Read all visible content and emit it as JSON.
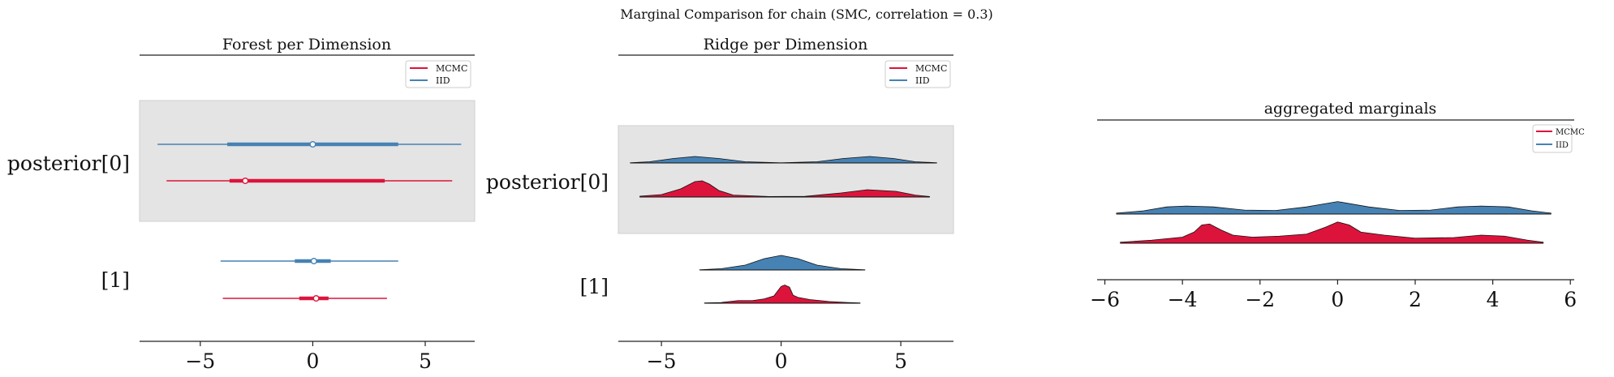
{
  "figure": {
    "suptitle": "Marginal Comparison for chain (SMC, correlation = 0.3)",
    "colors": {
      "MCMC": "#dc143c",
      "IID": "#4682b4",
      "band": "#e4e4e4",
      "axis": "#222222"
    }
  },
  "chart_data": [
    {
      "type": "forest",
      "title": "Forest per Dimension",
      "legend": [
        "MCMC",
        "IID"
      ],
      "legend_position": "top-right",
      "xlim": [
        -7.7,
        7.2
      ],
      "xticks": [
        -5,
        0,
        5
      ],
      "xtick_labels": [
        "−5",
        "0",
        "5"
      ],
      "rows": [
        {
          "label": "posterior[0]",
          "shaded": true,
          "series": [
            {
              "name": "IID",
              "hdi": [
                -6.9,
                6.6
              ],
              "iqr": [
                -3.8,
                3.8
              ],
              "center": 0.0
            },
            {
              "name": "MCMC",
              "hdi": [
                -6.5,
                6.2
              ],
              "iqr": [
                -3.7,
                3.2
              ],
              "center": -3.0
            }
          ]
        },
        {
          "label": "[1]",
          "shaded": false,
          "series": [
            {
              "name": "IID",
              "hdi": [
                -4.1,
                3.8
              ],
              "iqr": [
                -0.8,
                0.8
              ],
              "center": 0.05
            },
            {
              "name": "MCMC",
              "hdi": [
                -4.0,
                3.3
              ],
              "iqr": [
                -0.6,
                0.7
              ],
              "center": 0.15
            }
          ]
        }
      ]
    },
    {
      "type": "ridge",
      "title": "Ridge per Dimension",
      "legend": [
        "MCMC",
        "IID"
      ],
      "legend_position": "top-right",
      "xlim": [
        -6.8,
        7.2
      ],
      "xticks": [
        -5,
        0,
        5
      ],
      "xtick_labels": [
        "−5",
        "0",
        "5"
      ],
      "rows": [
        {
          "label": "posterior[0]",
          "shaded": true,
          "series": [
            {
              "name": "IID",
              "range": [
                -6.3,
                6.5
              ],
              "x": [
                -6.3,
                -5.5,
                -4.5,
                -3.6,
                -2.6,
                -1.5,
                0.0,
                1.5,
                2.6,
                3.7,
                4.7,
                5.6,
                6.5
              ],
              "y": [
                0.03,
                0.15,
                0.55,
                0.8,
                0.55,
                0.15,
                0.02,
                0.15,
                0.55,
                0.8,
                0.55,
                0.15,
                0.03
              ]
            },
            {
              "name": "MCMC",
              "range": [
                -5.9,
                6.2
              ],
              "x": [
                -5.9,
                -5.0,
                -4.2,
                -3.6,
                -3.3,
                -3.0,
                -2.6,
                -2.0,
                -0.5,
                1.0,
                2.5,
                3.6,
                4.8,
                5.6,
                6.2
              ],
              "y": [
                0.05,
                0.15,
                0.5,
                0.95,
                1.0,
                0.8,
                0.4,
                0.12,
                0.03,
                0.04,
                0.25,
                0.45,
                0.35,
                0.12,
                0.03
              ]
            }
          ]
        },
        {
          "label": "[1]",
          "shaded": false,
          "series": [
            {
              "name": "IID",
              "range": [
                -3.4,
                3.5
              ],
              "x": [
                -3.4,
                -2.5,
                -1.5,
                -0.7,
                0.0,
                0.7,
                1.5,
                2.5,
                3.5
              ],
              "y": [
                0.01,
                0.08,
                0.3,
                0.7,
                0.9,
                0.7,
                0.3,
                0.08,
                0.01
              ]
            },
            {
              "name": "MCMC",
              "range": [
                -3.2,
                3.3
              ],
              "x": [
                -3.2,
                -2.5,
                -1.8,
                -1.2,
                -0.7,
                -0.3,
                0.0,
                0.15,
                0.35,
                0.5,
                0.7,
                1.2,
                2.0,
                2.8,
                3.3
              ],
              "y": [
                0.02,
                0.05,
                0.18,
                0.18,
                0.3,
                0.5,
                1.15,
                1.25,
                1.1,
                0.55,
                0.4,
                0.25,
                0.12,
                0.05,
                0.02
              ]
            }
          ]
        }
      ]
    },
    {
      "type": "ridge",
      "title": "aggregated marginals",
      "legend": [
        "MCMC",
        "IID"
      ],
      "legend_position": "top-right",
      "xlim": [
        -6.2,
        6.1
      ],
      "xticks": [
        -6,
        -4,
        -2,
        0,
        2,
        4,
        6
      ],
      "xtick_labels": [
        "−6",
        "−4",
        "−2",
        "0",
        "2",
        "4",
        "6"
      ],
      "rows": [
        {
          "label": "",
          "shaded": false,
          "series": [
            {
              "name": "IID",
              "range": [
                -5.7,
                5.5
              ],
              "x": [
                -5.7,
                -5.0,
                -4.4,
                -3.9,
                -3.2,
                -2.4,
                -1.6,
                -0.8,
                0.0,
                0.8,
                1.6,
                2.4,
                3.1,
                3.7,
                4.4,
                5.0,
                5.5
              ],
              "y": [
                0.05,
                0.18,
                0.4,
                0.45,
                0.4,
                0.22,
                0.2,
                0.4,
                0.7,
                0.4,
                0.2,
                0.22,
                0.4,
                0.45,
                0.4,
                0.18,
                0.05
              ]
            },
            {
              "name": "MCMC",
              "range": [
                -5.6,
                5.3
              ],
              "x": [
                -5.6,
                -4.8,
                -4.0,
                -3.7,
                -3.5,
                -3.3,
                -3.0,
                -2.7,
                -2.2,
                -1.5,
                -0.8,
                -0.3,
                0.0,
                0.3,
                0.6,
                1.2,
                2.0,
                3.0,
                3.7,
                4.3,
                4.9,
                5.3
              ],
              "y": [
                0.05,
                0.15,
                0.3,
                0.55,
                0.9,
                0.95,
                0.65,
                0.4,
                0.3,
                0.35,
                0.45,
                0.8,
                1.05,
                0.9,
                0.55,
                0.4,
                0.25,
                0.28,
                0.4,
                0.35,
                0.15,
                0.05
              ]
            }
          ]
        }
      ]
    }
  ]
}
